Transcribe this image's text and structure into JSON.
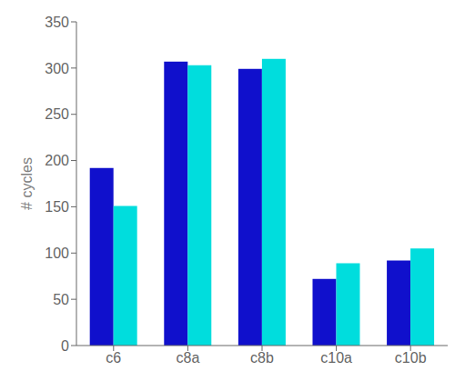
{
  "chart_data": {
    "type": "bar",
    "categories": [
      "c6",
      "c8a",
      "c8b",
      "c10a",
      "c10b"
    ],
    "series": [
      {
        "color": "#1010CC",
        "values": [
          192,
          307,
          299,
          72,
          92
        ]
      },
      {
        "color": "#00DDDD",
        "values": [
          151,
          303,
          310,
          89,
          105
        ]
      }
    ],
    "ylabel": "# cycles",
    "ylim": [
      0,
      350
    ],
    "yticks": [
      0,
      50,
      100,
      150,
      200,
      250,
      300,
      350
    ],
    "grid": false
  }
}
